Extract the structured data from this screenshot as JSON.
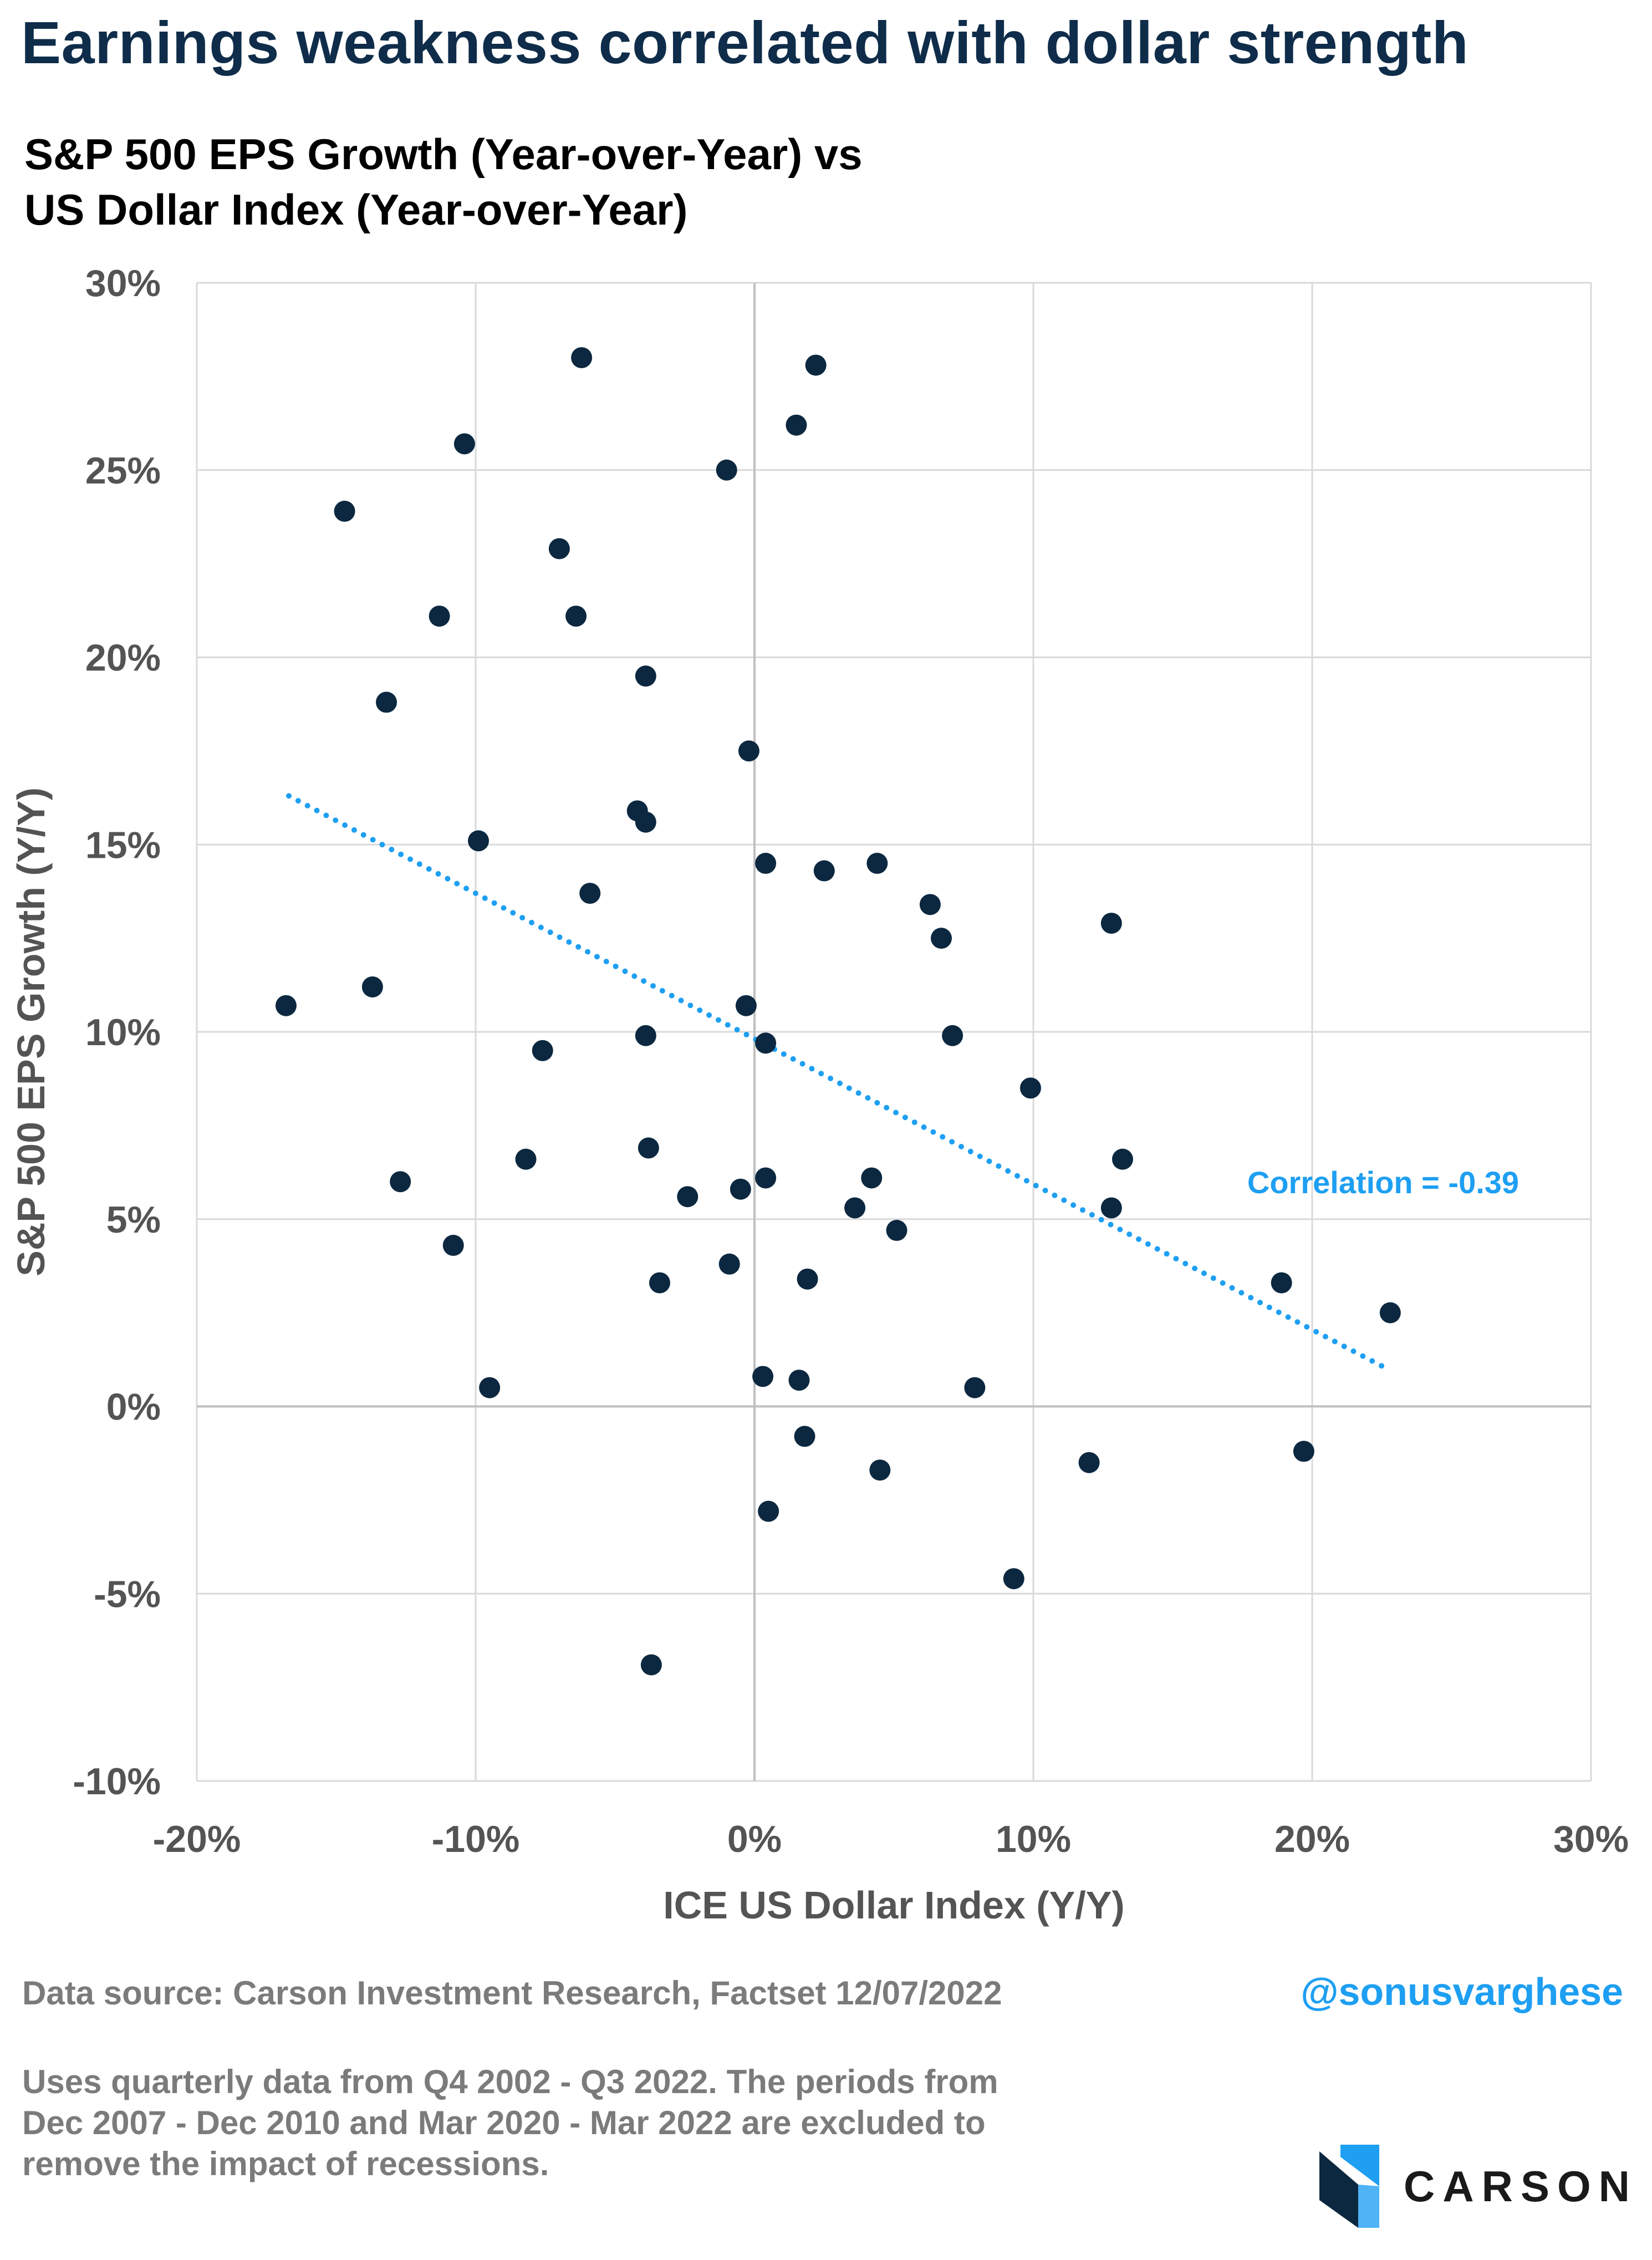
{
  "title": "Earnings weakness correlated with dollar strength",
  "subtitle_line1": "S&P 500 EPS Growth (Year-over-Year) vs",
  "subtitle_line2": "US Dollar Index (Year-over-Year)",
  "source": "Data source: Carson Investment Research, Factset   12/07/2022",
  "handle": "@sonusvarghese",
  "note_lines": [
    "Uses quarterly data from Q4 2002 - Q3 2022. The periods from",
    "Dec 2007 - Dec 2010 and Mar 2020 - Mar 2022 are excluded to",
    "remove the impact of recessions."
  ],
  "logo_text": "CARSON",
  "colors": {
    "title": "#0f2d4a",
    "points": "#0c2840",
    "trend": "#1e9ff2",
    "grid": "#d9d9d9",
    "axis_text": "#545454"
  },
  "chart_data": {
    "type": "scatter",
    "xlabel": "ICE US Dollar Index (Y/Y)",
    "ylabel": "S&P 500 EPS Growth (Y/Y)",
    "xlim": [
      -20,
      30
    ],
    "ylim": [
      -10,
      30
    ],
    "x_ticks": [
      -20,
      -10,
      0,
      10,
      20,
      30
    ],
    "y_ticks": [
      -10,
      -5,
      0,
      5,
      10,
      15,
      20,
      25,
      30
    ],
    "x_tick_labels": [
      "-20%",
      "-10%",
      "0%",
      "10%",
      "20%",
      "30%"
    ],
    "y_tick_labels": [
      "-10%",
      "-5%",
      "0%",
      "5%",
      "10%",
      "15%",
      "20%",
      "25%",
      "30%"
    ],
    "grid": true,
    "annotation": "Correlation = -0.39",
    "trendline": {
      "x": [
        -16.7,
        22.7
      ],
      "y": [
        16.3,
        1.0
      ]
    },
    "points": [
      [
        -6.2,
        28.0
      ],
      [
        2.2,
        27.8
      ],
      [
        1.5,
        26.2
      ],
      [
        -10.4,
        25.7
      ],
      [
        -1.0,
        25.0
      ],
      [
        -14.7,
        23.9
      ],
      [
        -7.0,
        22.9
      ],
      [
        -11.3,
        21.1
      ],
      [
        -6.4,
        21.1
      ],
      [
        -3.9,
        19.5
      ],
      [
        -13.2,
        18.8
      ],
      [
        -0.2,
        17.5
      ],
      [
        -4.2,
        15.9
      ],
      [
        -3.9,
        15.6
      ],
      [
        -9.9,
        15.1
      ],
      [
        0.4,
        14.5
      ],
      [
        4.4,
        14.5
      ],
      [
        2.5,
        14.3
      ],
      [
        -5.9,
        13.7
      ],
      [
        6.3,
        13.4
      ],
      [
        12.8,
        12.9
      ],
      [
        6.7,
        12.5
      ],
      [
        -13.7,
        11.2
      ],
      [
        -16.8,
        10.7
      ],
      [
        -0.3,
        10.7
      ],
      [
        -3.9,
        9.9
      ],
      [
        7.1,
        9.9
      ],
      [
        0.4,
        9.7
      ],
      [
        -7.6,
        9.5
      ],
      [
        9.9,
        8.5
      ],
      [
        -3.8,
        6.9
      ],
      [
        -8.2,
        6.6
      ],
      [
        13.2,
        6.6
      ],
      [
        0.4,
        6.1
      ],
      [
        4.2,
        6.1
      ],
      [
        -12.7,
        6.0
      ],
      [
        -0.5,
        5.8
      ],
      [
        -2.4,
        5.6
      ],
      [
        3.6,
        5.3
      ],
      [
        12.8,
        5.3
      ],
      [
        5.1,
        4.7
      ],
      [
        -10.8,
        4.3
      ],
      [
        -0.9,
        3.8
      ],
      [
        1.9,
        3.4
      ],
      [
        18.9,
        3.3
      ],
      [
        -3.4,
        3.3
      ],
      [
        22.8,
        2.5
      ],
      [
        0.3,
        0.8
      ],
      [
        1.6,
        0.7
      ],
      [
        -9.5,
        0.5
      ],
      [
        7.9,
        0.5
      ],
      [
        1.8,
        -0.8
      ],
      [
        19.7,
        -1.2
      ],
      [
        12.0,
        -1.5
      ],
      [
        4.5,
        -1.7
      ],
      [
        0.5,
        -2.8
      ],
      [
        9.3,
        -4.6
      ],
      [
        -3.7,
        -6.9
      ]
    ]
  }
}
